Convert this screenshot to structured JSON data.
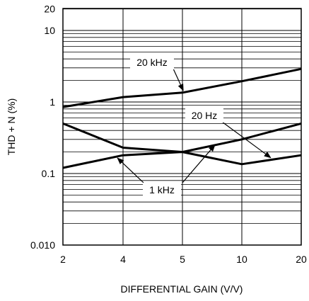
{
  "chart_data": {
    "type": "line",
    "title": "",
    "xlabel": "DIFFERENTIAL GAIN (V/V)",
    "ylabel": "THD + N (%)",
    "x_scale": "log",
    "y_scale": "log",
    "xlim": [
      2,
      20
    ],
    "ylim": [
      0.01,
      20
    ],
    "grid": true,
    "x_ticks": [
      2,
      4,
      5,
      10,
      20
    ],
    "x_tick_labels": [
      "2",
      "4",
      "5",
      "10",
      "20"
    ],
    "y_ticks": [
      0.01,
      0.1,
      1,
      10,
      20
    ],
    "y_tick_labels": [
      "0.010",
      "0.1",
      "1",
      "10",
      "20"
    ],
    "series": [
      {
        "name": "20 kHz",
        "x": [
          2,
          4,
          5,
          10,
          20
        ],
        "y": [
          0.85,
          1.17,
          1.35,
          1.95,
          2.9
        ]
      },
      {
        "name": "20 Hz",
        "x": [
          2,
          4,
          5,
          10,
          20
        ],
        "y": [
          0.5,
          0.23,
          0.2,
          0.135,
          0.18
        ]
      },
      {
        "name": "1 kHz",
        "x": [
          2,
          4,
          5,
          10,
          20
        ],
        "y": [
          0.12,
          0.18,
          0.2,
          0.3,
          0.5
        ]
      }
    ],
    "annotations": [
      {
        "text": "20 kHz",
        "series": "20 kHz"
      },
      {
        "text": "20 Hz",
        "series": "20 Hz"
      },
      {
        "text": "1 kHz",
        "series": "1 kHz"
      }
    ]
  }
}
